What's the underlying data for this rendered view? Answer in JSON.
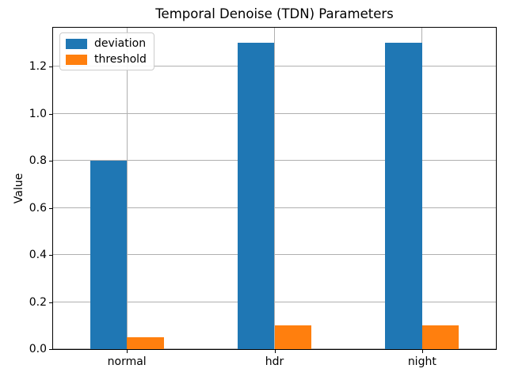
{
  "chart_data": {
    "type": "bar",
    "title": "Temporal Denoise (TDN) Parameters",
    "xlabel": "",
    "ylabel": "Value",
    "categories": [
      "normal",
      "hdr",
      "night"
    ],
    "series": [
      {
        "name": "deviation",
        "color": "#1f77b4",
        "values": [
          0.8,
          1.3,
          1.3
        ]
      },
      {
        "name": "threshold",
        "color": "#ff7f0e",
        "values": [
          0.05,
          0.1,
          0.1
        ]
      }
    ],
    "ytick_labels": [
      "0.0",
      "0.2",
      "0.4",
      "0.6",
      "0.8",
      "1.0",
      "1.2"
    ],
    "ylim": [
      0,
      1.365
    ],
    "grid": true,
    "legend_position": "upper-left",
    "bar_group_width_fraction": 0.5
  },
  "colors": {
    "grid": "#b0b0b0",
    "axis": "#000000",
    "background": "#ffffff",
    "legend_border": "#cccccc"
  }
}
